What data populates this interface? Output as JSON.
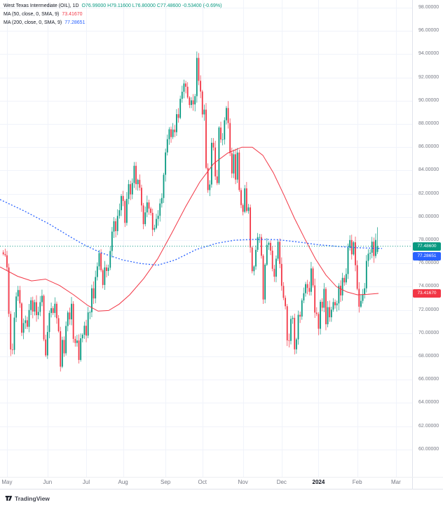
{
  "legend": {
    "symbol": "West Texas Intermediate (OIL), 1D",
    "ohlc": "O76.99000  H79.11600  L76.80000  C77.48600  -0.53400 (-0.69%)",
    "ma50_label": "MA (50, close, 0, SMA, 9)",
    "ma50_value": "73.41670",
    "ma200_label": "MA (200, close, 0, SMA, 9)",
    "ma200_value": "77.28651"
  },
  "price_axis": {
    "ticks": [
      98,
      96,
      94,
      92,
      90,
      88,
      86,
      84,
      82,
      80,
      78,
      76,
      74,
      72,
      70,
      68,
      66,
      64,
      62,
      60
    ],
    "tags": {
      "current": {
        "text": "77.48600",
        "price": 77.486,
        "bg": "#089981"
      },
      "ma200": {
        "text": "77.28651",
        "price": 77.28651,
        "bg": "#2962ff"
      },
      "ma50": {
        "text": "73.41670",
        "price": 73.4167,
        "bg": "#f23645"
      }
    }
  },
  "time_axis": {
    "labels": [
      "May",
      "Jun",
      "Jul",
      "Aug",
      "Sep",
      "Oct",
      "Nov",
      "Dec",
      "2024",
      "Feb",
      "Mar"
    ],
    "year_label": "2024"
  },
  "footer": {
    "brand": "TradingView"
  },
  "colors": {
    "up": "#089981",
    "down": "#f23645",
    "ma50": "#f23645",
    "ma200": "#2962ff",
    "grid": "#f0f3fa",
    "current_line": "#089981"
  },
  "chart_data": {
    "type": "candlestick",
    "title": "West Texas Intermediate (OIL)",
    "interval": "1D",
    "ylim": [
      59.5,
      98.5
    ],
    "grid": true,
    "current_price": 77.486,
    "month_start_indices": [
      2,
      24,
      45,
      65,
      88,
      108,
      130,
      151,
      171,
      192,
      213
    ],
    "closes": [
      76.8,
      76.7,
      75.66,
      71.66,
      68.6,
      68.56,
      71.34,
      73.16,
      73.71,
      72.56,
      70.04,
      70.87,
      71.11,
      70.55,
      71.99,
      72.83,
      71.86,
      72.67,
      71.55,
      71.83,
      72.67,
      73.22,
      69.46,
      68.09,
      70.1,
      71.74,
      72.15,
      71.74,
      72.53,
      71.29,
      70.17,
      67.12,
      69.42,
      68.27,
      70.62,
      71.78,
      71.19,
      72.53,
      69.51,
      69.16,
      69.37,
      67.7,
      69.56,
      69.86,
      70.64,
      69.79,
      71.79,
      71.8,
      73.86,
      72.99,
      74.83,
      75.75,
      76.89,
      75.42,
      74.15,
      75.66,
      75.35,
      75.63,
      77.07,
      78.74,
      79.63,
      78.78,
      80.09,
      80.58,
      81.8,
      81.37,
      79.49,
      81.55,
      82.82,
      81.94,
      82.92,
      84.4,
      82.82,
      83.19,
      82.51,
      80.99,
      79.38,
      80.39,
      81.25,
      80.72,
      80.35,
      78.89,
      79.05,
      79.83,
      80.1,
      81.16,
      81.63,
      83.63,
      85.55,
      86.69,
      87.54,
      86.87,
      87.51,
      87.29,
      88.84,
      88.52,
      90.16,
      90.77,
      91.48,
      91.2,
      90.28,
      89.63,
      90.03,
      89.68,
      90.39,
      93.68,
      91.71,
      90.79,
      88.82,
      89.23,
      84.22,
      82.31,
      82.79,
      86.38,
      85.97,
      83.49,
      82.91,
      87.69,
      86.66,
      86.66,
      88.32,
      89.37,
      88.08,
      85.49,
      83.74,
      85.39,
      83.21,
      85.54,
      82.31,
      81.02,
      80.44,
      82.46,
      80.51,
      80.82,
      77.37,
      75.33,
      75.74,
      77.17,
      78.26,
      78.26,
      76.66,
      72.9,
      75.89,
      77.6,
      77.77,
      77.1,
      75.54,
      74.86,
      76.41,
      77.86,
      75.96,
      74.07,
      73.04,
      72.32,
      69.38,
      69.34,
      71.23,
      71.32,
      68.61,
      69.47,
      71.58,
      71.43,
      72.82,
      73.44,
      74.22,
      73.89,
      73.56,
      75.57,
      74.11,
      71.77,
      71.65,
      70.38,
      72.7,
      72.19,
      73.81,
      70.77,
      72.24,
      71.37,
      72.02,
      72.68,
      72.4,
      72.56,
      74.08,
      73.25,
      74.76,
      74.37,
      75.09,
      77.36,
      78.01,
      76.78,
      77.82,
      75.85,
      73.82,
      72.28,
      72.78,
      73.31,
      73.86,
      76.22,
      76.84,
      76.92,
      77.87,
      76.64,
      78.02,
      77.486
    ],
    "last_candle": {
      "o": 76.99,
      "h": 79.116,
      "l": 76.8,
      "c": 77.486
    },
    "series": [
      {
        "name": "MA 50",
        "style": "solid",
        "anchors": [
          [
            0,
            75.7
          ],
          [
            25,
            74.9
          ],
          [
            45,
            74.5
          ],
          [
            65,
            74.65
          ],
          [
            85,
            74.1
          ],
          [
            105,
            73.3
          ],
          [
            125,
            72.4
          ],
          [
            140,
            71.9
          ],
          [
            155,
            71.95
          ],
          [
            170,
            72.5
          ],
          [
            185,
            73.3
          ],
          [
            205,
            74.7
          ],
          [
            225,
            76.4
          ],
          [
            245,
            78.6
          ],
          [
            265,
            80.9
          ],
          [
            285,
            83.0
          ],
          [
            305,
            84.6
          ],
          [
            325,
            85.5
          ],
          [
            345,
            86.0
          ],
          [
            360,
            86.0
          ],
          [
            375,
            85.3
          ],
          [
            390,
            83.8
          ],
          [
            405,
            81.9
          ],
          [
            420,
            79.9
          ],
          [
            435,
            78.1
          ],
          [
            450,
            76.4
          ],
          [
            465,
            75.0
          ],
          [
            480,
            74.0
          ],
          [
            495,
            73.55
          ],
          [
            510,
            73.3
          ],
          [
            525,
            73.35
          ],
          [
            540,
            73.42
          ]
        ]
      },
      {
        "name": "MA 200",
        "style": "dashed",
        "anchors": [
          [
            0,
            81.5
          ],
          [
            35,
            80.5
          ],
          [
            70,
            79.4
          ],
          [
            100,
            78.3
          ],
          [
            120,
            77.6
          ],
          [
            145,
            76.9
          ],
          [
            175,
            76.3
          ],
          [
            200,
            76.0
          ],
          [
            225,
            75.85
          ],
          [
            250,
            76.3
          ],
          [
            280,
            77.2
          ],
          [
            310,
            77.75
          ],
          [
            335,
            78.0
          ],
          [
            365,
            78.08
          ],
          [
            395,
            78.05
          ],
          [
            425,
            77.85
          ],
          [
            455,
            77.6
          ],
          [
            485,
            77.45
          ],
          [
            510,
            77.35
          ],
          [
            545,
            77.29
          ]
        ]
      }
    ]
  }
}
